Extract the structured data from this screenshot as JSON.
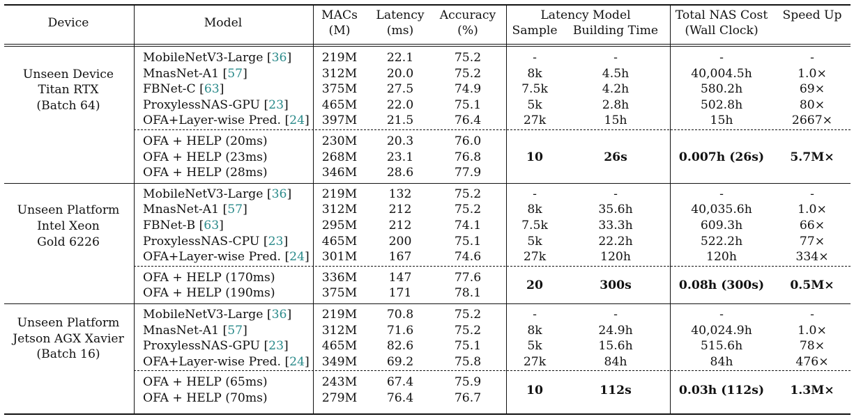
{
  "header": {
    "device": "Device",
    "model": "Model",
    "macs": [
      "MACs",
      "(M)"
    ],
    "latency": [
      "Latency",
      "(ms)"
    ],
    "accuracy": [
      "Accuracy",
      "(%)"
    ],
    "latency_model": "Latency Model",
    "sample": "Sample",
    "building_time": "Building Time",
    "nas_cost": [
      "Total NAS Cost",
      "(Wall Clock)"
    ],
    "speed_up": "Speed Up"
  },
  "groups": [
    {
      "device": [
        "Unseen Device",
        "Titan RTX",
        "(Batch 64)"
      ],
      "baselines": [
        {
          "model": "MobileNetV3-Large",
          "ref": "36",
          "macs": "219M",
          "latency": "22.1",
          "accuracy": "75.2",
          "sample": "-",
          "building": "-",
          "cost": "-",
          "speedup": "-"
        },
        {
          "model": "MnasNet-A1",
          "ref": "57",
          "macs": "312M",
          "latency": "20.0",
          "accuracy": "75.2",
          "sample": "8k",
          "building": "4.5h",
          "cost": "40,004.5h",
          "speedup": "1.0×"
        },
        {
          "model": "FBNet-C",
          "ref": "63",
          "macs": "375M",
          "latency": "27.5",
          "accuracy": "74.9",
          "sample": "7.5k",
          "building": "4.2h",
          "cost": "580.2h",
          "speedup": "69×"
        },
        {
          "model": "ProxylessNAS-GPU",
          "ref": "23",
          "macs": "465M",
          "latency": "22.0",
          "accuracy": "75.1",
          "sample": "5k",
          "building": "2.8h",
          "cost": "502.8h",
          "speedup": "80×"
        },
        {
          "model": "OFA+Layer-wise Pred.",
          "ref": "24",
          "macs": "397M",
          "latency": "21.5",
          "accuracy": "76.4",
          "sample": "27k",
          "building": "15h",
          "cost": "15h",
          "speedup": "2667×"
        }
      ],
      "help_rows": [
        {
          "model": "OFA + HELP (20ms)",
          "macs": "230M",
          "latency": "20.3",
          "accuracy": "76.0"
        },
        {
          "model": "OFA + HELP (23ms)",
          "macs": "268M",
          "latency": "23.1",
          "accuracy": "76.8"
        },
        {
          "model": "OFA + HELP (28ms)",
          "macs": "346M",
          "latency": "28.6",
          "accuracy": "77.9"
        }
      ],
      "help_summary": {
        "sample": "10",
        "building": "26s",
        "cost": "0.007h (26s)",
        "speedup": "5.7M×"
      }
    },
    {
      "device": [
        "Unseen Platform",
        "Intel Xeon",
        "Gold 6226"
      ],
      "baselines": [
        {
          "model": "MobileNetV3-Large",
          "ref": "36",
          "macs": "219M",
          "latency": "132",
          "accuracy": "75.2",
          "sample": "-",
          "building": "-",
          "cost": "-",
          "speedup": "-"
        },
        {
          "model": "MnasNet-A1",
          "ref": "57",
          "macs": "312M",
          "latency": "212",
          "accuracy": "75.2",
          "sample": "8k",
          "building": "35.6h",
          "cost": "40,035.6h",
          "speedup": "1.0×"
        },
        {
          "model": "FBNet-B",
          "ref": "63",
          "macs": "295M",
          "latency": "212",
          "accuracy": "74.1",
          "sample": "7.5k",
          "building": "33.3h",
          "cost": "609.3h",
          "speedup": "66×"
        },
        {
          "model": "ProxylessNAS-CPU",
          "ref": "23",
          "macs": "465M",
          "latency": "200",
          "accuracy": "75.1",
          "sample": "5k",
          "building": "22.2h",
          "cost": "522.2h",
          "speedup": "77×"
        },
        {
          "model": "OFA+Layer-wise Pred.",
          "ref": "24",
          "macs": "301M",
          "latency": "167",
          "accuracy": "74.6",
          "sample": "27k",
          "building": "120h",
          "cost": "120h",
          "speedup": "334×"
        }
      ],
      "help_rows": [
        {
          "model": "OFA + HELP (170ms)",
          "macs": "336M",
          "latency": "147",
          "accuracy": "77.6"
        },
        {
          "model": "OFA + HELP (190ms)",
          "macs": "375M",
          "latency": "171",
          "accuracy": "78.1"
        }
      ],
      "help_summary": {
        "sample": "20",
        "building": "300s",
        "cost": "0.08h (300s)",
        "speedup": "0.5M×"
      }
    },
    {
      "device": [
        "Unseen Platform",
        "Jetson AGX Xavier",
        "(Batch 16)"
      ],
      "baselines": [
        {
          "model": "MobileNetV3-Large",
          "ref": "36",
          "macs": "219M",
          "latency": "70.8",
          "accuracy": "75.2",
          "sample": "-",
          "building": "-",
          "cost": "-",
          "speedup": "-"
        },
        {
          "model": "MnasNet-A1",
          "ref": "57",
          "macs": "312M",
          "latency": "71.6",
          "accuracy": "75.2",
          "sample": "8k",
          "building": "24.9h",
          "cost": "40,024.9h",
          "speedup": "1.0×"
        },
        {
          "model": "ProxylessNAS-GPU",
          "ref": "23",
          "macs": "465M",
          "latency": "82.6",
          "accuracy": "75.1",
          "sample": "5k",
          "building": "15.6h",
          "cost": "515.6h",
          "speedup": "78×"
        },
        {
          "model": "OFA+Layer-wise Pred.",
          "ref": "24",
          "macs": "349M",
          "latency": "69.2",
          "accuracy": "75.8",
          "sample": "27k",
          "building": "84h",
          "cost": "84h",
          "speedup": "476×"
        }
      ],
      "help_rows": [
        {
          "model": "OFA + HELP (65ms)",
          "macs": "243M",
          "latency": "67.4",
          "accuracy": "75.9"
        },
        {
          "model": "OFA + HELP (70ms)",
          "macs": "279M",
          "latency": "76.4",
          "accuracy": "76.7"
        }
      ],
      "help_summary": {
        "sample": "10",
        "building": "112s",
        "cost": "0.03h (112s)",
        "speedup": "1.3M×"
      }
    }
  ]
}
